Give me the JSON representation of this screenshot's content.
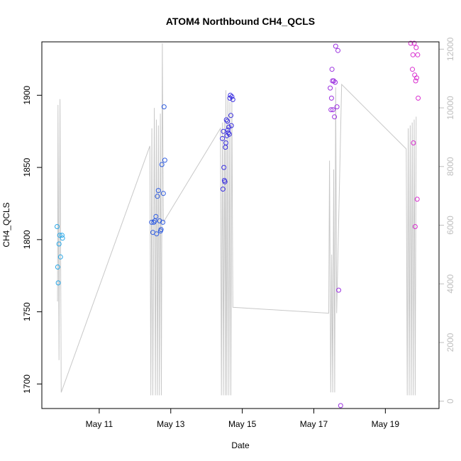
{
  "chart_data": {
    "type": "scatter",
    "title": "ATOM4 Northbound CH4_QCLS",
    "xlabel": "Date",
    "ylabel": "CH4_QCLS",
    "xlim": [
      "2018-05-09T09:30",
      "2018-05-20T12:00"
    ],
    "ylim": [
      1683.0,
      1937.0
    ],
    "x_ticks": [
      {
        "date": "2018-05-11T00:00",
        "label": "May 11"
      },
      {
        "date": "2018-05-13T00:00",
        "label": "May 13"
      },
      {
        "date": "2018-05-15T00:00",
        "label": "May 15"
      },
      {
        "date": "2018-05-17T00:00",
        "label": "May 17"
      },
      {
        "date": "2018-05-19T00:00",
        "label": "May 19"
      }
    ],
    "y_ticks": [
      1700,
      1750,
      1800,
      1850,
      1900
    ],
    "y2_lim": [
      -250,
      12250
    ],
    "y2_ticks": [
      0,
      2000,
      4000,
      6000,
      8000,
      10000,
      12000
    ],
    "grid": false,
    "series": [
      {
        "color": "#29a8e8",
        "points": [
          [
            "2018-05-09T19:45",
            1809
          ],
          [
            "2018-05-09T20:10",
            1781
          ],
          [
            "2018-05-09T20:30",
            1770
          ],
          [
            "2018-05-09T21:00",
            1797
          ],
          [
            "2018-05-09T21:30",
            1803
          ],
          [
            "2018-05-09T22:00",
            1788
          ],
          [
            "2018-05-09T23:00",
            1803
          ],
          [
            "2018-05-09T23:20",
            1801
          ]
        ]
      },
      {
        "color": "#2f5ce0",
        "points": [
          [
            "2018-05-12T11:10",
            1812
          ],
          [
            "2018-05-12T12:00",
            1805
          ],
          [
            "2018-05-12T12:40",
            1812
          ],
          [
            "2018-05-12T13:20",
            1813
          ],
          [
            "2018-05-12T14:00",
            1816
          ],
          [
            "2018-05-12T14:30",
            1804
          ],
          [
            "2018-05-12T15:00",
            1830
          ],
          [
            "2018-05-12T15:40",
            1834
          ],
          [
            "2018-05-12T16:30",
            1813
          ],
          [
            "2018-05-12T17:10",
            1806
          ],
          [
            "2018-05-12T17:30",
            1807
          ],
          [
            "2018-05-12T18:00",
            1852
          ],
          [
            "2018-05-12T18:40",
            1812
          ],
          [
            "2018-05-12T19:00",
            1832
          ],
          [
            "2018-05-12T19:30",
            1892
          ],
          [
            "2018-05-12T20:00",
            1855
          ]
        ]
      },
      {
        "color": "#3a2fe0",
        "points": [
          [
            "2018-05-14T10:40",
            1870
          ],
          [
            "2018-05-14T11:00",
            1835
          ],
          [
            "2018-05-14T11:20",
            1875
          ],
          [
            "2018-05-14T11:40",
            1850
          ],
          [
            "2018-05-14T12:00",
            1841
          ],
          [
            "2018-05-14T12:20",
            1840
          ],
          [
            "2018-05-14T12:40",
            1864
          ],
          [
            "2018-05-14T13:00",
            1867
          ],
          [
            "2018-05-14T13:20",
            1883
          ],
          [
            "2018-05-14T13:40",
            1872
          ],
          [
            "2018-05-14T14:00",
            1882
          ],
          [
            "2018-05-14T14:20",
            1876
          ],
          [
            "2018-05-14T14:40",
            1874
          ],
          [
            "2018-05-14T15:00",
            1878
          ],
          [
            "2018-05-14T15:20",
            1873
          ],
          [
            "2018-05-14T15:40",
            1898
          ],
          [
            "2018-05-14T16:00",
            1900
          ],
          [
            "2018-05-14T16:20",
            1886
          ],
          [
            "2018-05-14T16:40",
            1879
          ],
          [
            "2018-05-14T17:00",
            1899
          ],
          [
            "2018-05-14T17:40",
            1897
          ]
        ]
      },
      {
        "color": "#9b30e0",
        "points": [
          [
            "2018-05-17T11:00",
            1905
          ],
          [
            "2018-05-17T11:30",
            1890
          ],
          [
            "2018-05-17T11:50",
            1898
          ],
          [
            "2018-05-17T12:10",
            1918
          ],
          [
            "2018-05-17T12:30",
            1910
          ],
          [
            "2018-05-17T12:50",
            1890
          ],
          [
            "2018-05-17T13:20",
            1910
          ],
          [
            "2018-05-17T13:50",
            1885
          ],
          [
            "2018-05-17T14:20",
            1909
          ],
          [
            "2018-05-17T14:40",
            1934
          ],
          [
            "2018-05-17T15:30",
            1892
          ],
          [
            "2018-05-17T16:10",
            1931
          ],
          [
            "2018-05-17T16:40",
            1765
          ],
          [
            "2018-05-17T18:00",
            1685
          ]
        ]
      },
      {
        "color": "#d92fd0",
        "points": [
          [
            "2018-05-19T17:00",
            1936
          ],
          [
            "2018-05-19T18:10",
            1918
          ],
          [
            "2018-05-19T18:30",
            1928
          ],
          [
            "2018-05-19T18:50",
            1867
          ],
          [
            "2018-05-19T19:20",
            1936
          ],
          [
            "2018-05-19T19:40",
            1914
          ],
          [
            "2018-05-19T20:00",
            1809
          ],
          [
            "2018-05-19T20:20",
            1910
          ],
          [
            "2018-05-19T20:40",
            1933
          ],
          [
            "2018-05-19T21:00",
            1912
          ],
          [
            "2018-05-19T21:20",
            1828
          ],
          [
            "2018-05-19T21:40",
            1928
          ],
          [
            "2018-05-19T22:00",
            1898
          ]
        ]
      }
    ],
    "secondary_line": {
      "color": "#c8c8c8",
      "points": [
        [
          "2018-05-09T20:00",
          3400
        ],
        [
          "2018-05-09T20:20",
          10100
        ],
        [
          "2018-05-09T21:00",
          1400
        ],
        [
          "2018-05-09T21:40",
          10300
        ],
        [
          "2018-05-09T22:30",
          300
        ],
        [
          "2018-05-12T10:00",
          8700
        ],
        [
          "2018-05-12T10:40",
          200
        ],
        [
          "2018-05-12T11:20",
          9300
        ],
        [
          "2018-05-12T12:00",
          200
        ],
        [
          "2018-05-12T13:00",
          10000
        ],
        [
          "2018-05-12T13:40",
          200
        ],
        [
          "2018-05-12T14:20",
          9600
        ],
        [
          "2018-05-12T15:00",
          200
        ],
        [
          "2018-05-12T15:40",
          9400
        ],
        [
          "2018-05-12T16:20",
          200
        ],
        [
          "2018-05-12T17:00",
          9800
        ],
        [
          "2018-05-12T17:40",
          200
        ],
        [
          "2018-05-12T18:20",
          12200
        ],
        [
          "2018-05-12T19:00",
          6100
        ],
        [
          "2018-05-14T09:20",
          9300
        ],
        [
          "2018-05-14T10:00",
          200
        ],
        [
          "2018-05-14T10:40",
          9500
        ],
        [
          "2018-05-14T11:20",
          200
        ],
        [
          "2018-05-14T12:00",
          9600
        ],
        [
          "2018-05-14T12:40",
          200
        ],
        [
          "2018-05-14T13:00",
          10600
        ],
        [
          "2018-05-14T13:40",
          200
        ],
        [
          "2018-05-14T14:20",
          10400
        ],
        [
          "2018-05-14T15:00",
          200
        ],
        [
          "2018-05-14T15:40",
          10200
        ],
        [
          "2018-05-14T16:20",
          200
        ],
        [
          "2018-05-14T17:00",
          10300
        ],
        [
          "2018-05-14T17:40",
          3200
        ],
        [
          "2018-05-17T10:00",
          3000
        ],
        [
          "2018-05-17T10:30",
          8200
        ],
        [
          "2018-05-17T11:20",
          300
        ],
        [
          "2018-05-17T12:00",
          5000
        ],
        [
          "2018-05-17T12:40",
          300
        ],
        [
          "2018-05-17T13:20",
          7900
        ],
        [
          "2018-05-17T14:00",
          300
        ],
        [
          "2018-05-17T14:40",
          10700
        ],
        [
          "2018-05-17T15:20",
          3000
        ],
        [
          "2018-05-17T18:40",
          10800
        ],
        [
          "2018-05-19T14:00",
          8600
        ],
        [
          "2018-05-19T14:40",
          200
        ],
        [
          "2018-05-19T15:20",
          9300
        ],
        [
          "2018-05-19T16:00",
          200
        ],
        [
          "2018-05-19T16:40",
          9400
        ],
        [
          "2018-05-19T17:20",
          200
        ],
        [
          "2018-05-19T18:00",
          9500
        ],
        [
          "2018-05-19T18:40",
          200
        ],
        [
          "2018-05-19T19:20",
          9600
        ],
        [
          "2018-05-19T20:00",
          200
        ],
        [
          "2018-05-19T20:40",
          9700
        ]
      ]
    }
  }
}
